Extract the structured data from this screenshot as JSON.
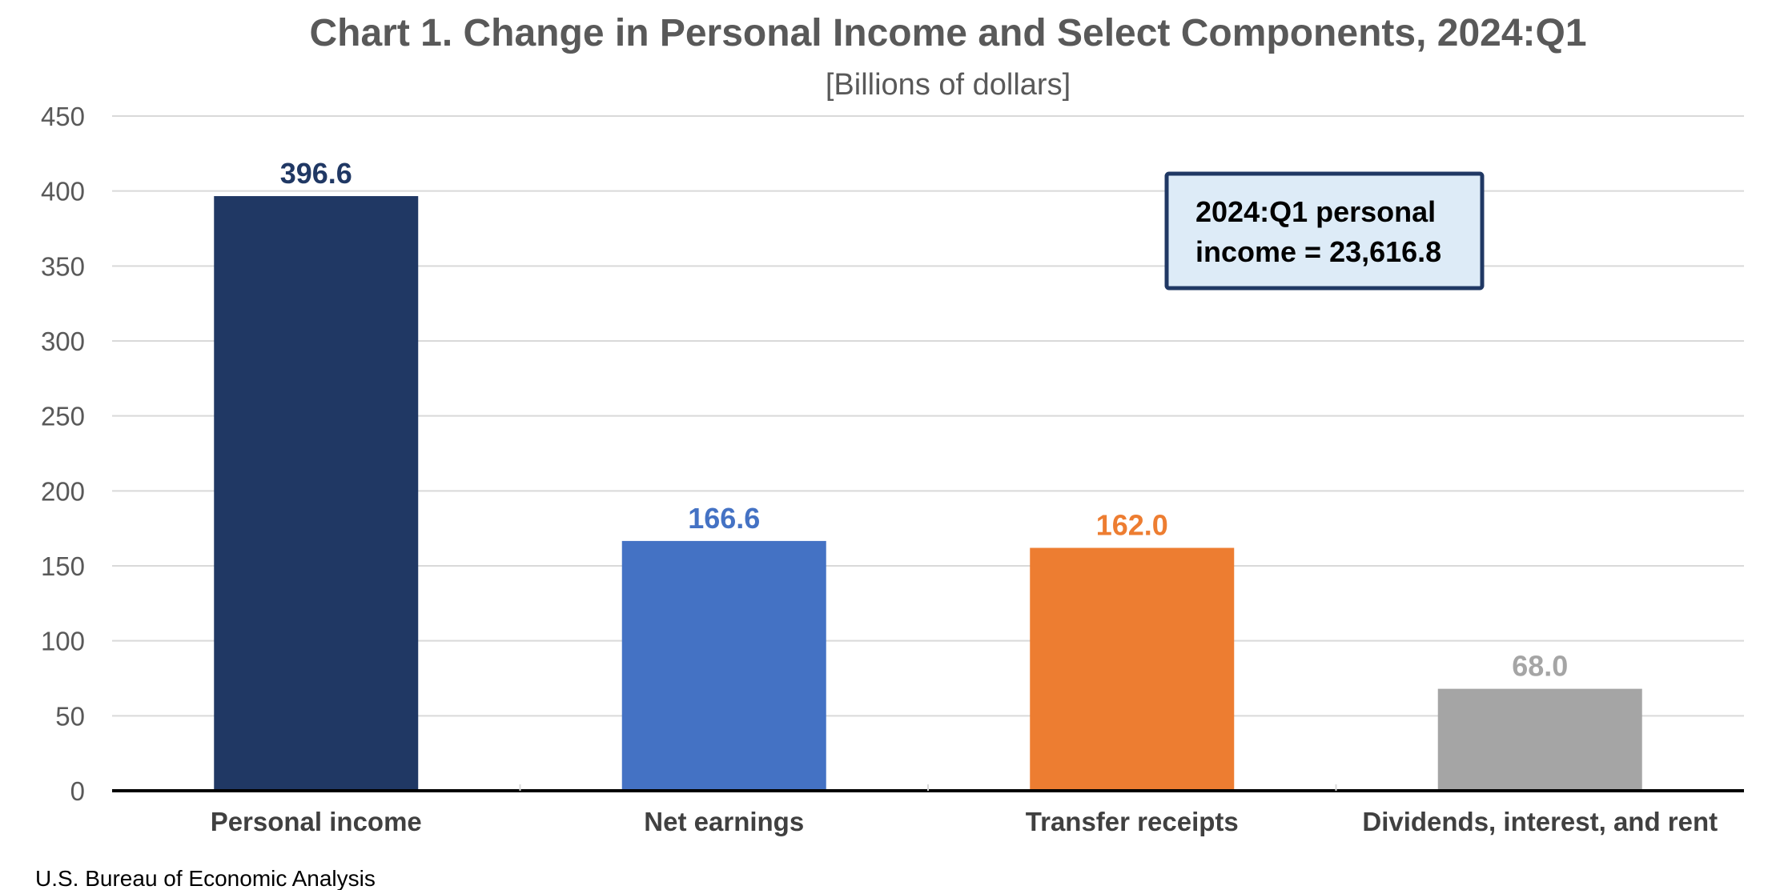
{
  "chart_data": {
    "type": "bar",
    "title": "Chart 1. Change in Personal Income and Select Components, 2024:Q1",
    "subtitle": "[Billions of dollars]",
    "xlabel": "",
    "ylabel": "",
    "ylim": [
      0,
      450
    ],
    "yticks": [
      "0",
      "50",
      "100",
      "150",
      "200",
      "250",
      "300",
      "350",
      "400",
      "450"
    ],
    "grid": true,
    "categories": [
      "Personal income",
      "Net earnings",
      "Transfer receipts",
      "Dividends, interest, and rent"
    ],
    "values": [
      396.6,
      166.6,
      162.0,
      68.0
    ],
    "data_labels": [
      "396.6",
      "166.6",
      "162.0",
      "68.0"
    ],
    "colors": [
      "#203864",
      "#4472C4",
      "#ED7D31",
      "#A5A5A5"
    ],
    "annotation": {
      "line1": "2024:Q1 personal",
      "line2": "income = 23,616.8",
      "border_color": "#203864",
      "background": "#DDEBF7"
    },
    "source": "U.S. Bureau of Economic Analysis"
  }
}
